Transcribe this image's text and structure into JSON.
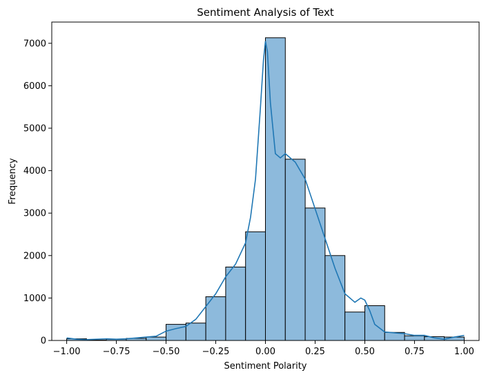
{
  "chart_data": {
    "type": "bar",
    "subtype": "histogram-with-kde",
    "title": "Sentiment Analysis of Text",
    "xlabel": "Sentiment Polarity",
    "ylabel": "Frequency",
    "xlim": [
      -1.075,
      1.075
    ],
    "ylim": [
      0,
      7500
    ],
    "xticks": [
      -1.0,
      -0.75,
      -0.5,
      -0.25,
      0.0,
      0.25,
      0.5,
      0.75,
      1.0
    ],
    "xtick_labels": [
      "−1.00",
      "−0.75",
      "−0.50",
      "−0.25",
      "0.00",
      "0.25",
      "0.50",
      "0.75",
      "1.00"
    ],
    "yticks": [
      0,
      1000,
      2000,
      3000,
      4000,
      5000,
      6000,
      7000
    ],
    "ytick_labels": [
      "0",
      "1000",
      "2000",
      "3000",
      "4000",
      "5000",
      "6000",
      "7000"
    ],
    "bin_edges": [
      -1.0,
      -0.9,
      -0.8,
      -0.7,
      -0.6,
      -0.5,
      -0.4,
      -0.3,
      -0.2,
      -0.1,
      0.0,
      0.1,
      0.2,
      0.3,
      0.4,
      0.5,
      0.6,
      0.7,
      0.8,
      0.9,
      1.0
    ],
    "values": [
      40,
      10,
      30,
      50,
      80,
      380,
      410,
      1030,
      1730,
      2560,
      7130,
      4270,
      3120,
      2000,
      670,
      820,
      190,
      110,
      90,
      80
    ],
    "kde": {
      "x": [
        -1.0,
        -0.95,
        -0.9,
        -0.85,
        -0.8,
        -0.75,
        -0.7,
        -0.65,
        -0.6,
        -0.55,
        -0.5,
        -0.45,
        -0.4,
        -0.35,
        -0.3,
        -0.25,
        -0.2,
        -0.15,
        -0.1,
        -0.075,
        -0.05,
        -0.025,
        -0.01,
        0.0,
        0.01,
        0.025,
        0.05,
        0.075,
        0.1,
        0.125,
        0.15,
        0.2,
        0.25,
        0.3,
        0.35,
        0.4,
        0.45,
        0.48,
        0.5,
        0.525,
        0.55,
        0.6,
        0.65,
        0.7,
        0.75,
        0.8,
        0.85,
        0.9,
        0.95,
        1.0
      ],
      "y": [
        60,
        30,
        20,
        30,
        40,
        30,
        40,
        60,
        80,
        100,
        220,
        280,
        330,
        500,
        800,
        1100,
        1500,
        1800,
        2300,
        2900,
        3800,
        5500,
        6600,
        7050,
        6800,
        5600,
        4400,
        4300,
        4400,
        4300,
        4200,
        3800,
        3100,
        2400,
        1700,
        1100,
        900,
        1000,
        950,
        700,
        380,
        200,
        180,
        160,
        120,
        120,
        60,
        30,
        80,
        120
      ]
    },
    "bar_color": "#8dbadc",
    "bar_edge_color": "#000000",
    "line_color": "#1f77b4",
    "grid": false,
    "legend": "none"
  }
}
